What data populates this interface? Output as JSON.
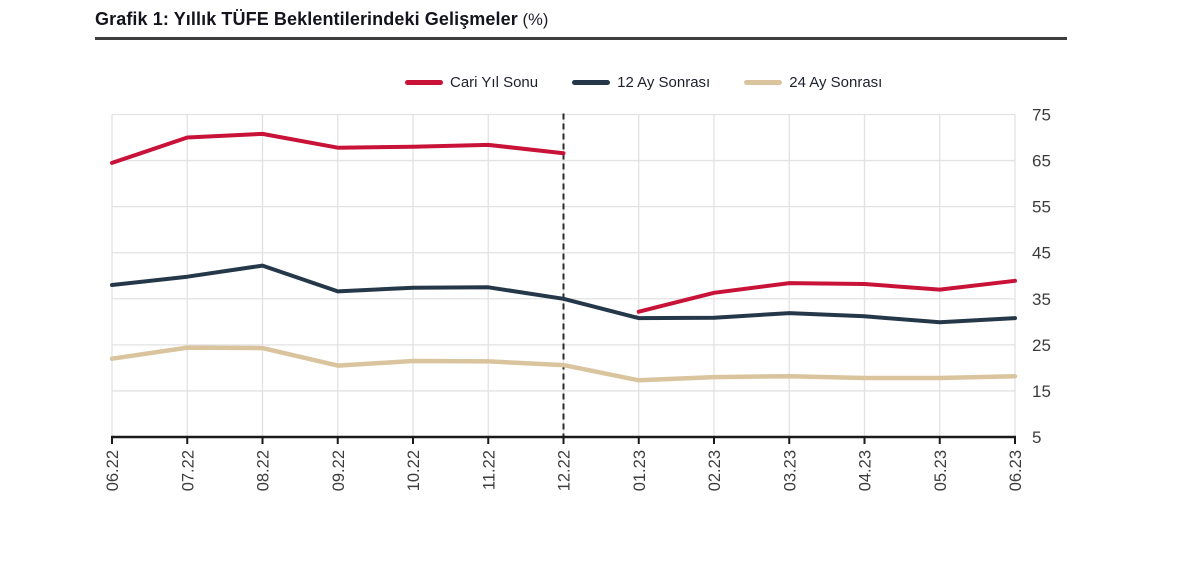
{
  "title": {
    "main": "Grafik 1: Yıllık TÜFE Beklentilerindeki Gelişmeler",
    "suffix": " (%)"
  },
  "chart_data": {
    "type": "line",
    "title": "Grafik 1: Yıllık TÜFE Beklentilerindeki Gelişmeler (%)",
    "categories": [
      "06.22",
      "07.22",
      "08.22",
      "09.22",
      "10.22",
      "11.22",
      "12.22",
      "01.23",
      "02.23",
      "03.23",
      "04.23",
      "05.23",
      "06.23"
    ],
    "series": [
      {
        "name": "Cari Yıl Sonu",
        "color": "#c81238",
        "stroke_width": 4,
        "gap_after_index": 6,
        "values": [
          64.5,
          70.0,
          70.8,
          67.8,
          68.0,
          68.4,
          66.6,
          32.2,
          36.3,
          38.4,
          38.2,
          37.0,
          38.9
        ]
      },
      {
        "name": "12 Ay Sonrası",
        "color": "#25384a",
        "stroke_width": 4,
        "gap_after_index": null,
        "values": [
          38.0,
          39.8,
          42.2,
          36.6,
          37.4,
          37.5,
          35.0,
          30.8,
          30.9,
          31.9,
          31.2,
          29.9,
          30.8
        ]
      },
      {
        "name": "24 Ay Sonrası",
        "color": "#d9c49e",
        "stroke_width": 4.5,
        "gap_after_index": null,
        "values": [
          22.0,
          24.4,
          24.3,
          20.5,
          21.5,
          21.4,
          20.6,
          17.3,
          18.0,
          18.2,
          17.8,
          17.8,
          18.2
        ]
      }
    ],
    "ylim": [
      5,
      75
    ],
    "yticks": [
      5,
      15,
      25,
      35,
      45,
      55,
      65,
      75
    ],
    "ylabel": "",
    "xlabel": "",
    "grid": true,
    "legend_position": "top",
    "marker_line": {
      "category": "12.22",
      "style": "dashed",
      "color": "#2b2b2b"
    },
    "colors": {
      "gridline": "#e2e2e2",
      "axis": "#1a1a1a",
      "tick_label": "#3c3c3c"
    }
  }
}
